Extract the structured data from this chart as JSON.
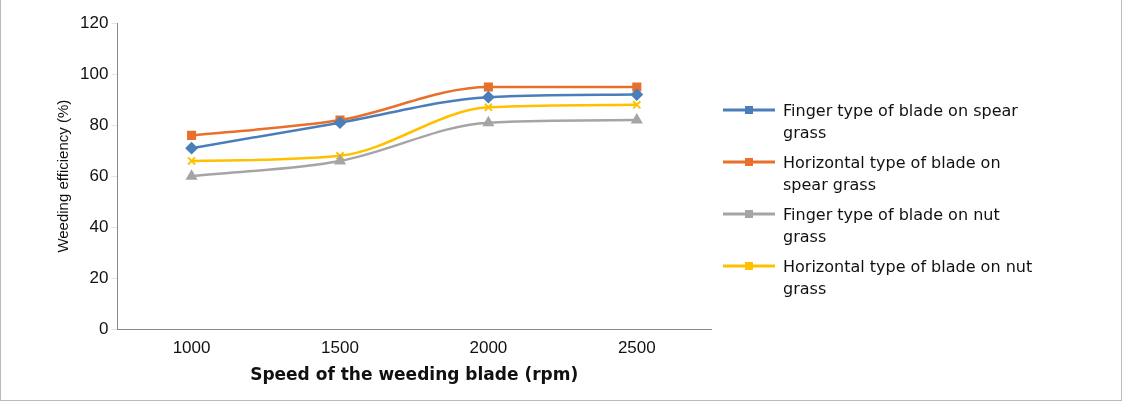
{
  "chart_data": {
    "type": "line",
    "xlabel": "Speed of the weeding blade (rpm)",
    "ylabel": "Weeding efficiency (%)",
    "categories": [
      "1000",
      "1500",
      "2000",
      "2500"
    ],
    "series": [
      {
        "name": "Finger type of blade on spear grass",
        "color": "#4a7ebb",
        "marker": "diamond",
        "values": [
          71,
          81,
          91,
          92
        ]
      },
      {
        "name": "Horizontal type of blade on spear grass",
        "color": "#e8702a",
        "marker": "square",
        "values": [
          76,
          82,
          95,
          95
        ]
      },
      {
        "name": "Finger type of blade on nut grass",
        "color": "#a5a5a5",
        "marker": "triangle",
        "values": [
          60,
          66,
          81,
          82
        ]
      },
      {
        "name": "Horizontal  type of blade on nut grass",
        "color": "#ffc000",
        "marker": "cross",
        "values": [
          66,
          68,
          87,
          88
        ]
      }
    ],
    "ylim": [
      0,
      120
    ],
    "yticks": [
      0,
      20,
      40,
      60,
      80,
      100,
      120
    ],
    "grid": false,
    "legend": "right",
    "line_style": "solid"
  }
}
